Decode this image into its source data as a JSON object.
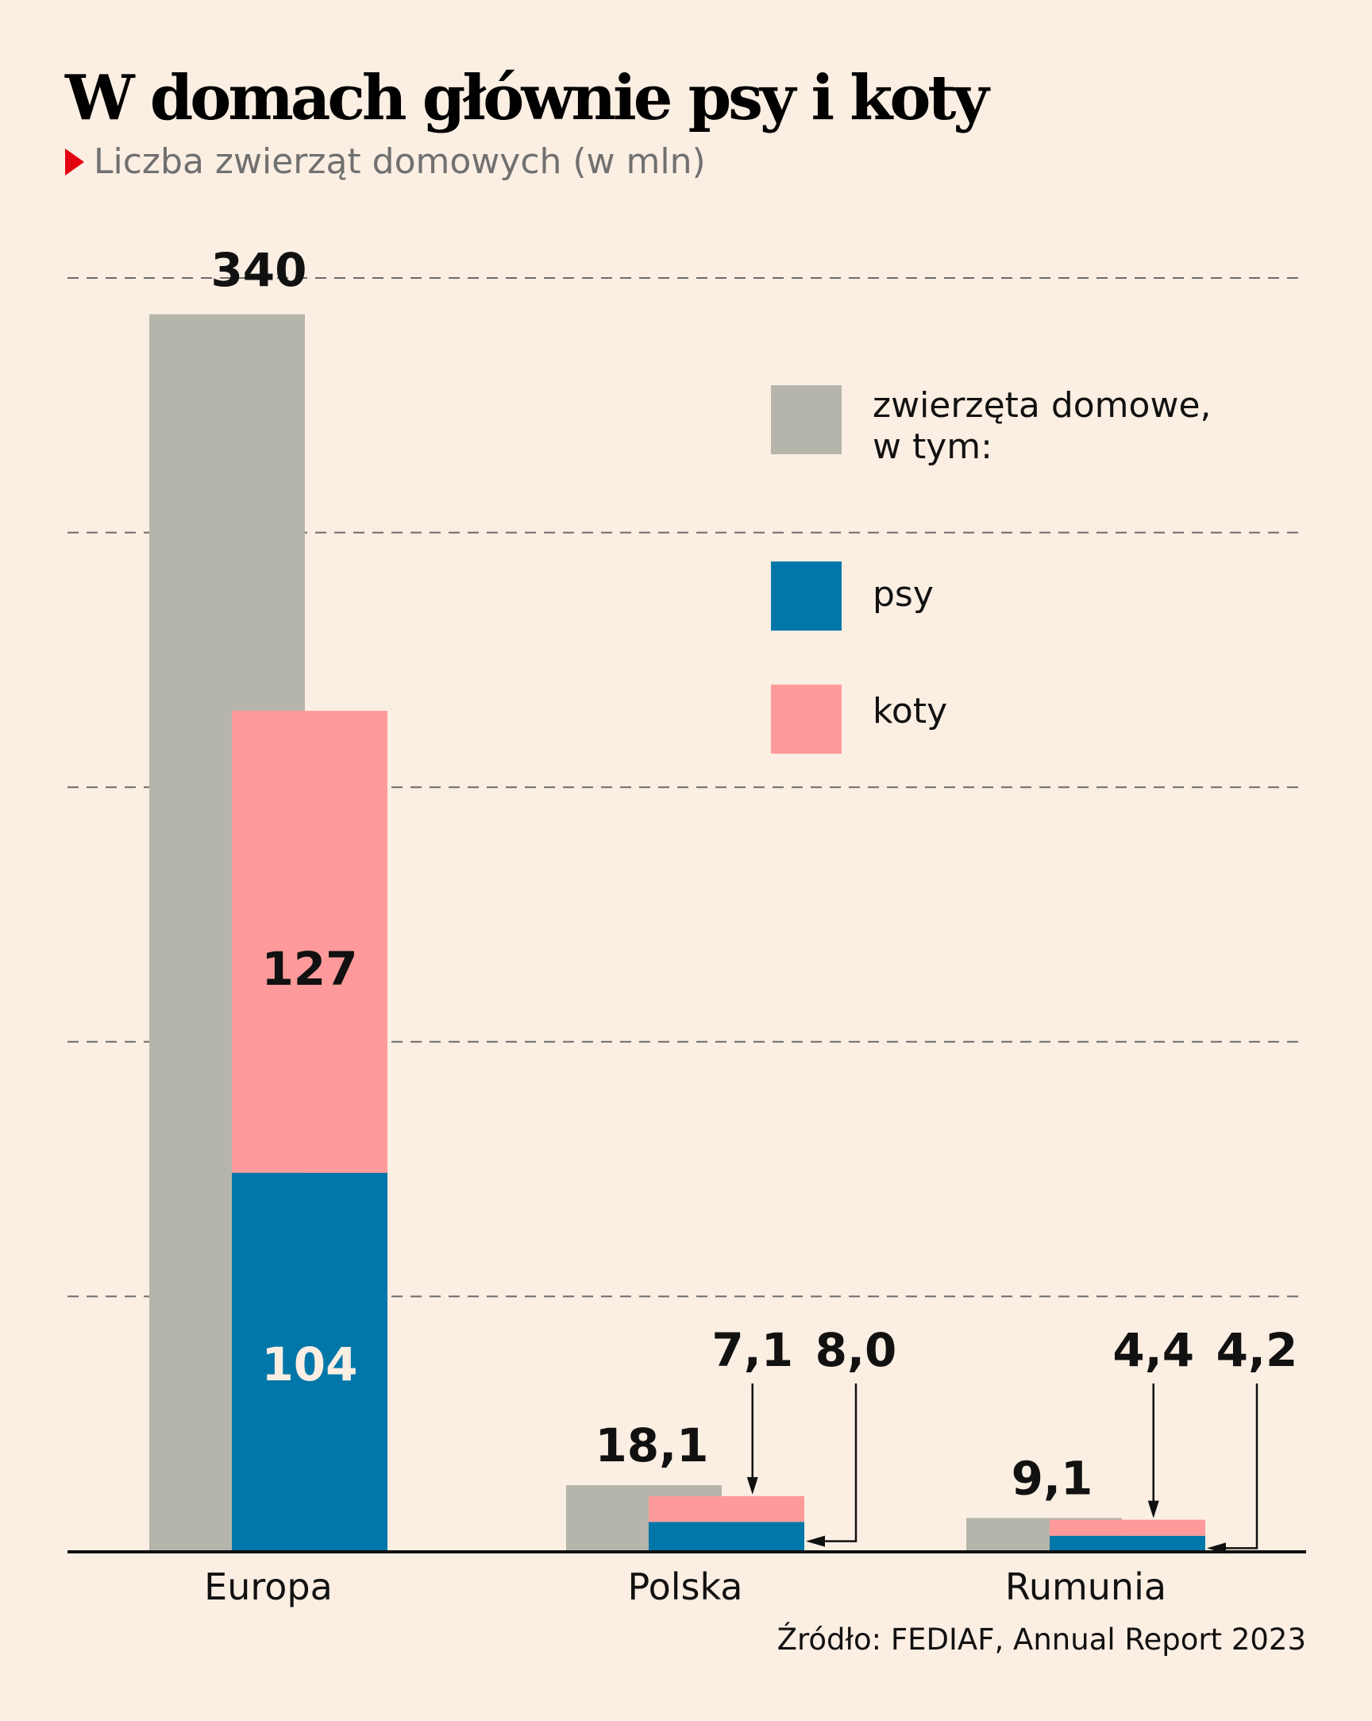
{
  "header": {
    "title": "W domach głównie psy i koty",
    "subtitle": "Liczba zwierząt domowych (w mln)"
  },
  "legend": [
    {
      "key": "total",
      "label_line1": "zwierzęta domowe,",
      "label_line2": "w tym:",
      "color": "#b5b5ab"
    },
    {
      "key": "psy",
      "label_line1": "psy",
      "label_line2": "",
      "color": "#0077a8"
    },
    {
      "key": "koty",
      "label_line1": "koty",
      "label_line2": "",
      "color": "#fe9a9b"
    }
  ],
  "source": "Źródło: FEDIAF, Annual Report 2023",
  "chart_data": {
    "type": "bar",
    "title": "W domach głównie psy i koty",
    "subtitle": "Liczba zwierząt domowych (w mln)",
    "xlabel": "",
    "ylabel": "",
    "ylim": [
      0,
      350
    ],
    "grid": true,
    "gridlines": [
      70,
      140,
      210,
      280,
      350
    ],
    "legend_position": "top-right",
    "categories": [
      "Europa",
      "Polska",
      "Rumunia"
    ],
    "series": [
      {
        "name": "zwierzęta domowe, w tym:",
        "values": [
          340,
          18.1,
          9.1
        ],
        "labels": [
          "340",
          "18,1",
          "9,1"
        ],
        "color": "#b5b5ab"
      },
      {
        "name": "psy",
        "values": [
          104,
          8.0,
          4.2
        ],
        "labels": [
          "104",
          "8,0",
          "4,2"
        ],
        "color": "#0077a8"
      },
      {
        "name": "koty",
        "values": [
          127,
          7.1,
          4.4
        ],
        "labels": [
          "127",
          "7,1",
          "4,4"
        ],
        "color": "#fe9a9b"
      }
    ],
    "stacked_series": [
      "psy",
      "koty"
    ]
  }
}
